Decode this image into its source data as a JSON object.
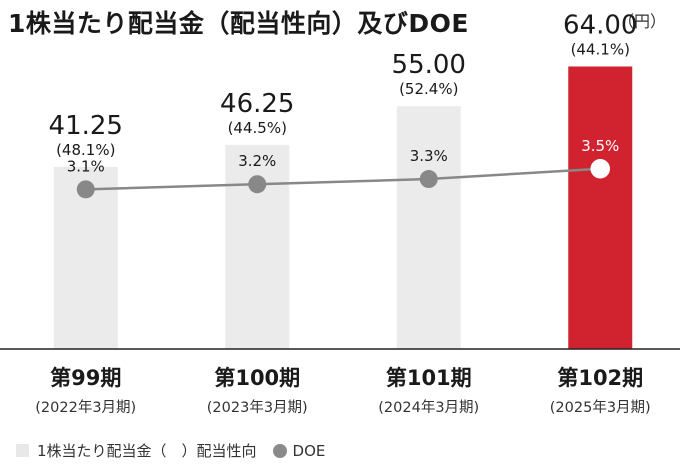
{
  "chart_data": {
    "type": "bar",
    "title": "1株当たり配当金（配当性向）及びDOE",
    "unit": "（円）",
    "categories": [
      "第99期",
      "第100期",
      "第101期",
      "第102期"
    ],
    "periods": [
      "(2022年3月期)",
      "(2023年3月期)",
      "(2024年3月期)",
      "(2025年3月期)"
    ],
    "series": [
      {
        "name": "1株当たり配当金（　）配当性向",
        "values": [
          41.25,
          46.25,
          55.0,
          64.0
        ],
        "labels": [
          "41.25",
          "46.25",
          "55.00",
          "64.00"
        ],
        "payout_labels": [
          "(48.1%)",
          "(44.5%)",
          "(52.4%)",
          "(44.1%)"
        ],
        "color": "#ebebeb",
        "highlight_color": "#d0232f"
      },
      {
        "name": "DOE",
        "type": "line",
        "values": [
          3.1,
          3.2,
          3.3,
          3.5
        ],
        "labels": [
          "3.1%",
          "3.2%",
          "3.3%",
          "3.5%"
        ],
        "color": "#888888"
      }
    ],
    "ylim": [
      0,
      70
    ],
    "doe_ylim": [
      0,
      6
    ],
    "legend_position": "bottom-left"
  },
  "legend": {
    "dividend_label": "1株当たり配当金（　）配当性向",
    "doe_label": "DOE"
  }
}
